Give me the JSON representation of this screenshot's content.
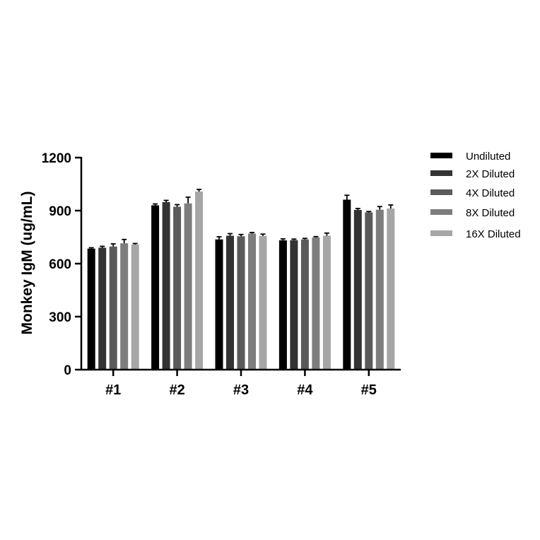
{
  "chart_data": {
    "type": "bar",
    "ylabel": "Monkey IgM (ug/mL)",
    "xlabel": "",
    "ylim": [
      0,
      1200
    ],
    "yticks": [
      0,
      300,
      600,
      900,
      1200
    ],
    "categories": [
      "#1",
      "#2",
      "#3",
      "#4",
      "#5"
    ],
    "series": [
      {
        "name": "Undiluted",
        "color": "#000000",
        "values": [
          685,
          930,
          737,
          732,
          962
        ],
        "errors": [
          5,
          8,
          15,
          8,
          25
        ]
      },
      {
        "name": "2X Diluted",
        "color": "#333333",
        "values": [
          690,
          948,
          758,
          733,
          904
        ],
        "errors": [
          8,
          10,
          12,
          6,
          8
        ]
      },
      {
        "name": "4X Diluted",
        "color": "#5a5a5a",
        "values": [
          697,
          922,
          755,
          737,
          890
        ],
        "errors": [
          15,
          12,
          10,
          6,
          5
        ]
      },
      {
        "name": "8X Diluted",
        "color": "#7d7d7d",
        "values": [
          715,
          941,
          770,
          748,
          905
        ],
        "errors": [
          22,
          35,
          6,
          5,
          18
        ]
      },
      {
        "name": "16X Diluted",
        "color": "#a6a6a6",
        "values": [
          708,
          1008,
          757,
          758,
          912
        ],
        "errors": [
          6,
          12,
          10,
          15,
          20
        ]
      }
    ],
    "legend_position": "right"
  }
}
